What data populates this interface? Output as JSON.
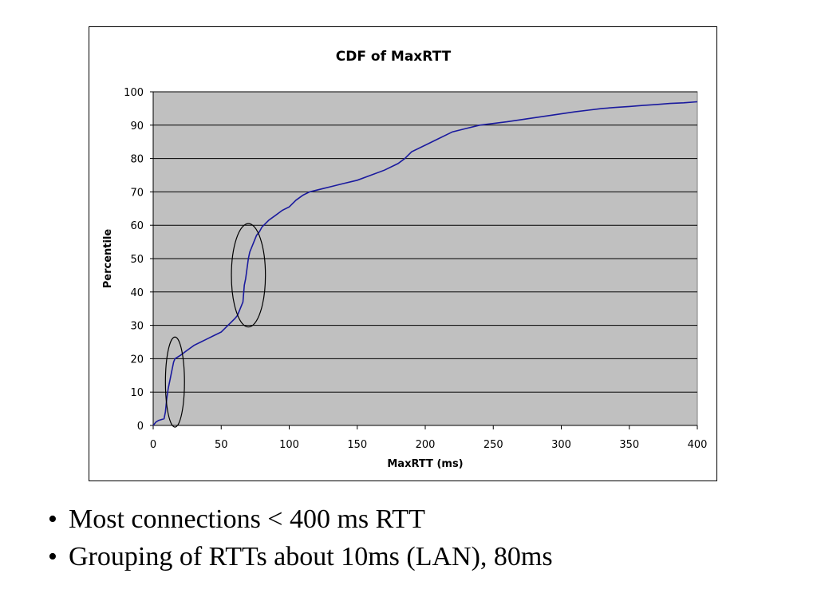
{
  "slide": {
    "bullets": [
      "Most connections < 400 ms RTT",
      "Grouping of RTTs about 10ms (LAN), 80ms"
    ],
    "bullet_symbol": "•"
  },
  "chart_data": {
    "type": "line",
    "title": "CDF of MaxRTT",
    "xlabel": "MaxRTT (ms)",
    "ylabel": "Percentile",
    "xlim": [
      0,
      400
    ],
    "ylim": [
      0,
      100
    ],
    "x_ticks": [
      0,
      50,
      100,
      150,
      200,
      250,
      300,
      350,
      400
    ],
    "y_ticks": [
      0,
      10,
      20,
      30,
      40,
      50,
      60,
      70,
      80,
      90,
      100
    ],
    "grid": "horizontal",
    "legend": "none",
    "plot_background": "#c0c0c0",
    "line_color": "#1a1a9e",
    "series": [
      {
        "name": "MaxRTT CDF",
        "x": [
          0,
          2,
          4,
          8,
          9,
          10,
          11,
          12,
          13,
          14,
          15,
          16,
          18,
          20,
          25,
          30,
          35,
          40,
          45,
          50,
          55,
          60,
          62,
          64,
          66,
          67,
          68,
          69,
          70,
          71,
          72,
          74,
          76,
          78,
          80,
          85,
          90,
          95,
          100,
          105,
          110,
          115,
          120,
          125,
          130,
          140,
          150,
          160,
          170,
          180,
          185,
          190,
          200,
          210,
          220,
          230,
          240,
          250,
          260,
          270,
          280,
          290,
          300,
          310,
          320,
          330,
          340,
          350,
          360,
          370,
          380,
          390,
          400
        ],
        "y": [
          0,
          1,
          1.5,
          2,
          4,
          8,
          11,
          13,
          15,
          17,
          19,
          20,
          20.5,
          21,
          22.5,
          24,
          25,
          26,
          27,
          28,
          30,
          32,
          33,
          35,
          37,
          42,
          44,
          47,
          50,
          52,
          53,
          55,
          57,
          58,
          59.5,
          61.5,
          63,
          64.5,
          65.5,
          67.5,
          69,
          70,
          70.5,
          71,
          71.5,
          72.5,
          73.5,
          75,
          76.5,
          78.5,
          80,
          82,
          84,
          86,
          88,
          89,
          90,
          90.5,
          91,
          91.6,
          92.2,
          92.8,
          93.4,
          94,
          94.5,
          95,
          95.3,
          95.6,
          95.9,
          96.2,
          96.5,
          96.7,
          97
        ]
      }
    ],
    "annotations": [
      {
        "shape": "ellipse",
        "cx": 16,
        "cy": 13,
        "rx": 7,
        "ry": 13.5
      },
      {
        "shape": "ellipse",
        "cx": 70,
        "cy": 45,
        "rx": 12.5,
        "ry": 15.5
      }
    ]
  }
}
